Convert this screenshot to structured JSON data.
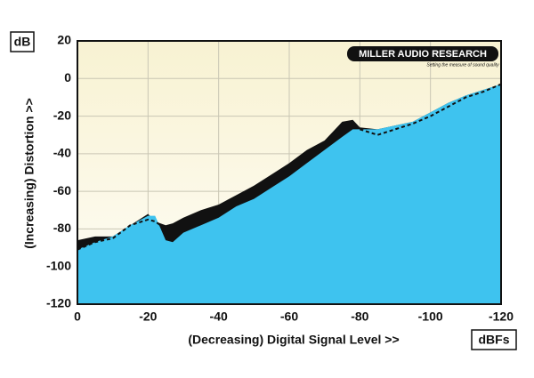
{
  "chart_data": {
    "type": "area",
    "y_unit": "dB",
    "x_unit": "dBFs",
    "xlabel": "(Decreasing) Digital Signal Level >>",
    "ylabel": "(Increasing) Distortion >>",
    "logo": "MILLER AUDIO RESEARCH",
    "tagline": "Setting the measure of sound quality",
    "x": [
      0,
      -5,
      -10,
      -15,
      -20,
      -22,
      -25,
      -27,
      -30,
      -35,
      -40,
      -45,
      -50,
      -55,
      -60,
      -65,
      -70,
      -75,
      -78,
      -80,
      -85,
      -90,
      -95,
      -100,
      -105,
      -110,
      -115,
      -120
    ],
    "series": [
      {
        "color": "#3ec3ef",
        "style": "area",
        "values": [
          -91,
          -87,
          -84,
          -78,
          -73,
          -73,
          -86,
          -87,
          -82,
          -78,
          -74,
          -68,
          -64,
          -58,
          -52,
          -45,
          -38,
          -31,
          -27,
          -27,
          -27,
          -25,
          -23,
          -18,
          -13,
          -9,
          -6,
          -3
        ]
      },
      {
        "color": "#111111",
        "style": "area",
        "values": [
          -86,
          -84,
          -84,
          -78,
          -72,
          -76,
          -78,
          -77,
          -74,
          -70,
          -67,
          -62,
          -57,
          -51,
          -45,
          -38,
          -33,
          -23,
          -22,
          -26,
          -27,
          -25,
          -23,
          -18,
          -13,
          -9,
          -6,
          -3
        ]
      },
      {
        "color": "#111111",
        "style": "dashed",
        "values": [
          -91,
          -87,
          -85,
          -78,
          -75,
          -76,
          -80,
          null,
          null,
          null,
          null,
          null,
          null,
          null,
          null,
          null,
          null,
          null,
          null,
          -27,
          -30,
          -27,
          -24,
          -20,
          -15,
          -10,
          -7,
          -3
        ]
      }
    ],
    "xlim": [
      0,
      -120
    ],
    "xticks": [
      0,
      -20,
      -40,
      -60,
      -80,
      -100,
      -120
    ],
    "ylim": [
      -120,
      20
    ],
    "yticks": [
      20,
      0,
      -20,
      -40,
      -60,
      -80,
      -100,
      -120
    ],
    "grid": true
  }
}
